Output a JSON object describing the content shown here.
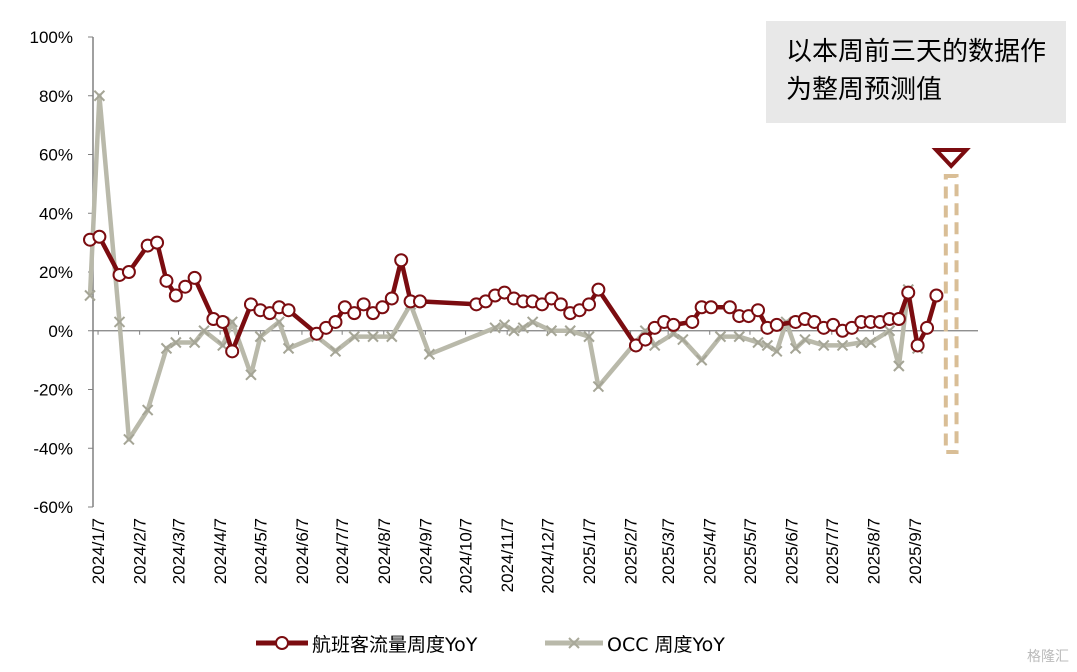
{
  "note": "以本周前三天的数据作为整周预测值",
  "watermark": "格隆汇",
  "legend": {
    "series1": "航班客流量周度YoY",
    "series2": "OCC 周度YoY"
  },
  "colors": {
    "series1": "#7b0c10",
    "series2": "#b9b9aa",
    "highlight": "#d9be96",
    "marker": "#7b0c10"
  },
  "chart_data": {
    "type": "line",
    "ylim": [
      -60,
      100
    ],
    "yticks": [
      "100%",
      "80%",
      "60%",
      "40%",
      "20%",
      "0%",
      "-20%",
      "-40%",
      "-60%"
    ],
    "xlim": [
      "2024-01-01",
      "2025-10-24"
    ],
    "xticks": [
      "2024/1/7",
      "2024/2/7",
      "2024/3/7",
      "2024/4/7",
      "2024/5/7",
      "2024/6/7",
      "2024/7/7",
      "2024/8/7",
      "2024/9/7",
      "2024/10/7",
      "2024/11/7",
      "2024/12/7",
      "2025/1/7",
      "2025/2/7",
      "2025/3/7",
      "2025/4/7",
      "2025/5/7",
      "2025/6/7",
      "2025/7/7",
      "2025/8/7",
      "2025/9/7"
    ],
    "highlight_range": [
      "2025-09-30",
      "2025-10-08"
    ],
    "series": [
      {
        "name": "航班客流量周度YoY",
        "points": [
          [
            "2024-01-01",
            31
          ],
          [
            "2024-01-08",
            32
          ],
          [
            "2024-01-23",
            19
          ],
          [
            "2024-01-30",
            20
          ],
          [
            "2024-02-13",
            29
          ],
          [
            "2024-02-20",
            30
          ],
          [
            "2024-02-27",
            17
          ],
          [
            "2024-03-05",
            12
          ],
          [
            "2024-03-12",
            15
          ],
          [
            "2024-03-19",
            18
          ],
          [
            "2024-04-02",
            4
          ],
          [
            "2024-04-09",
            3
          ],
          [
            "2024-04-16",
            -7
          ],
          [
            "2024-04-30",
            9
          ],
          [
            "2024-05-07",
            7
          ],
          [
            "2024-05-14",
            6
          ],
          [
            "2024-05-21",
            8
          ],
          [
            "2024-05-28",
            7
          ],
          [
            "2024-06-18",
            -1
          ],
          [
            "2024-06-25",
            1
          ],
          [
            "2024-07-02",
            3
          ],
          [
            "2024-07-09",
            8
          ],
          [
            "2024-07-16",
            6
          ],
          [
            "2024-07-23",
            9
          ],
          [
            "2024-07-30",
            6
          ],
          [
            "2024-08-06",
            8
          ],
          [
            "2024-08-13",
            11
          ],
          [
            "2024-08-20",
            24
          ],
          [
            "2024-08-27",
            10
          ],
          [
            "2024-09-03",
            10
          ],
          [
            "2024-10-15",
            9
          ],
          [
            "2024-10-22",
            10
          ],
          [
            "2024-10-29",
            12
          ],
          [
            "2024-11-05",
            13
          ],
          [
            "2024-11-12",
            11
          ],
          [
            "2024-11-19",
            10
          ],
          [
            "2024-11-26",
            10
          ],
          [
            "2024-12-03",
            9
          ],
          [
            "2024-12-10",
            11
          ],
          [
            "2024-12-17",
            9
          ],
          [
            "2024-12-24",
            6
          ],
          [
            "2024-12-31",
            7
          ],
          [
            "2025-01-07",
            9
          ],
          [
            "2025-01-14",
            14
          ],
          [
            "2025-02-11",
            -5
          ],
          [
            "2025-02-18",
            -3
          ],
          [
            "2025-02-25",
            1
          ],
          [
            "2025-03-04",
            3
          ],
          [
            "2025-03-11",
            2
          ],
          [
            "2025-03-25",
            3
          ],
          [
            "2025-04-01",
            8
          ],
          [
            "2025-04-08",
            8
          ],
          [
            "2025-04-22",
            8
          ],
          [
            "2025-04-29",
            5
          ],
          [
            "2025-05-06",
            5
          ],
          [
            "2025-05-13",
            7
          ],
          [
            "2025-05-20",
            1
          ],
          [
            "2025-05-27",
            2
          ],
          [
            "2025-06-10",
            3
          ],
          [
            "2025-06-17",
            4
          ],
          [
            "2025-06-24",
            3
          ],
          [
            "2025-07-01",
            1
          ],
          [
            "2025-07-08",
            2
          ],
          [
            "2025-07-15",
            0
          ],
          [
            "2025-07-22",
            1
          ],
          [
            "2025-07-29",
            3
          ],
          [
            "2025-08-05",
            3
          ],
          [
            "2025-08-12",
            3
          ],
          [
            "2025-08-19",
            4
          ],
          [
            "2025-08-26",
            4
          ],
          [
            "2025-09-02",
            13
          ],
          [
            "2025-09-09",
            -5
          ],
          [
            "2025-09-16",
            1
          ],
          [
            "2025-09-23",
            12
          ]
        ]
      },
      {
        "name": "OCC 周度YoY",
        "points": [
          [
            "2024-01-01",
            12
          ],
          [
            "2024-01-08",
            80
          ],
          [
            "2024-01-23",
            3
          ],
          [
            "2024-01-30",
            -37
          ],
          [
            "2024-02-13",
            -27
          ],
          [
            "2024-02-27",
            -6
          ],
          [
            "2024-03-05",
            -4
          ],
          [
            "2024-03-19",
            -4
          ],
          [
            "2024-03-26",
            0
          ],
          [
            "2024-04-09",
            -5
          ],
          [
            "2024-04-16",
            3
          ],
          [
            "2024-04-30",
            -15
          ],
          [
            "2024-05-07",
            -2
          ],
          [
            "2024-05-21",
            3
          ],
          [
            "2024-05-28",
            -6
          ],
          [
            "2024-06-18",
            -2
          ],
          [
            "2024-07-02",
            -7
          ],
          [
            "2024-07-16",
            -2
          ],
          [
            "2024-07-30",
            -2
          ],
          [
            "2024-08-13",
            -2
          ],
          [
            "2024-08-27",
            9
          ],
          [
            "2024-09-10",
            -8
          ],
          [
            "2024-10-29",
            1
          ],
          [
            "2024-11-05",
            2
          ],
          [
            "2024-11-12",
            0
          ],
          [
            "2024-11-19",
            1
          ],
          [
            "2024-11-26",
            3
          ],
          [
            "2024-12-10",
            0
          ],
          [
            "2024-12-24",
            0
          ],
          [
            "2025-01-07",
            -2
          ],
          [
            "2025-01-14",
            -19
          ],
          [
            "2025-02-18",
            0
          ],
          [
            "2025-02-25",
            -5
          ],
          [
            "2025-03-11",
            -1
          ],
          [
            "2025-03-18",
            -3
          ],
          [
            "2025-04-01",
            -10
          ],
          [
            "2025-04-15",
            -2
          ],
          [
            "2025-04-29",
            -2
          ],
          [
            "2025-05-13",
            -4
          ],
          [
            "2025-05-20",
            -5
          ],
          [
            "2025-05-27",
            -7
          ],
          [
            "2025-06-03",
            3
          ],
          [
            "2025-06-10",
            -6
          ],
          [
            "2025-06-17",
            -3
          ],
          [
            "2025-07-01",
            -5
          ],
          [
            "2025-07-15",
            -5
          ],
          [
            "2025-07-29",
            -4
          ],
          [
            "2025-08-05",
            -4
          ],
          [
            "2025-08-19",
            0
          ],
          [
            "2025-08-26",
            -12
          ],
          [
            "2025-09-02",
            14
          ],
          [
            "2025-09-09",
            -6
          ]
        ]
      }
    ]
  }
}
